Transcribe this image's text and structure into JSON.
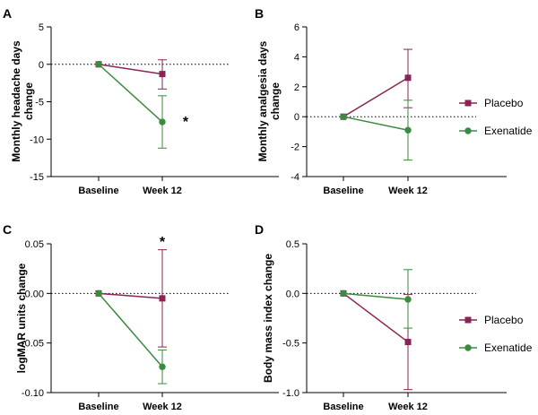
{
  "colors": {
    "placebo": "#8c2356",
    "exenatide": "#3a8a3f"
  },
  "legend": {
    "placebo": "Placebo",
    "exenatide": "Exenatide"
  },
  "chart_data": [
    {
      "type": "line",
      "panel": "A",
      "ylabel": [
        "Monthly headache days",
        "change"
      ],
      "categories": [
        "Baseline",
        "Week 12"
      ],
      "ylim": [
        -15,
        5
      ],
      "yticks": [
        "5",
        "0",
        "-5",
        "-10",
        "-15"
      ],
      "ytick_values": [
        5,
        0,
        -5,
        -10,
        -15
      ],
      "reference_line": 0,
      "series": [
        {
          "name": "Placebo",
          "values": [
            0,
            -1.3
          ],
          "err_low": [
            0,
            -3.3
          ],
          "err_high": [
            0,
            0.6
          ]
        },
        {
          "name": "Exenatide",
          "values": [
            0,
            -7.7
          ],
          "err_low": [
            0,
            -11.2
          ],
          "err_high": [
            0,
            -4.2
          ]
        }
      ],
      "annotation": "*"
    },
    {
      "type": "line",
      "panel": "B",
      "ylabel": [
        "Monthly analgesia days",
        "change"
      ],
      "categories": [
        "Baseline",
        "Week 12"
      ],
      "ylim": [
        -4,
        6
      ],
      "yticks": [
        "6",
        "4",
        "2",
        "0",
        "-2",
        "-4"
      ],
      "ytick_values": [
        6,
        4,
        2,
        0,
        -2,
        -4
      ],
      "reference_line": 0,
      "series": [
        {
          "name": "Placebo",
          "values": [
            0,
            2.6
          ],
          "err_low": [
            0,
            0.6
          ],
          "err_high": [
            0,
            4.5
          ]
        },
        {
          "name": "Exenatide",
          "values": [
            0,
            -0.9
          ],
          "err_low": [
            0,
            -2.9
          ],
          "err_high": [
            0,
            1.1
          ]
        }
      ],
      "annotation": ""
    },
    {
      "type": "line",
      "panel": "C",
      "ylabel": [
        "logMAR units change"
      ],
      "categories": [
        "Baseline",
        "Week 12"
      ],
      "ylim": [
        -0.1,
        0.05
      ],
      "yticks": [
        "0.05",
        "0.00",
        "-0.05",
        "-0.10"
      ],
      "ytick_values": [
        0.05,
        0,
        -0.05,
        -0.1
      ],
      "reference_line": 0,
      "series": [
        {
          "name": "Placebo",
          "values": [
            0,
            -0.005
          ],
          "err_low": [
            0,
            -0.054
          ],
          "err_high": [
            0,
            0.044
          ]
        },
        {
          "name": "Exenatide",
          "values": [
            0,
            -0.074
          ],
          "err_low": [
            0,
            -0.091
          ],
          "err_high": [
            0,
            -0.057
          ]
        }
      ],
      "annotation": "*"
    },
    {
      "type": "line",
      "panel": "D",
      "ylabel": [
        "Body mass index change"
      ],
      "categories": [
        "Baseline",
        "Week 12"
      ],
      "ylim": [
        -1.0,
        0.5
      ],
      "yticks": [
        "0.5",
        "0.0",
        "-0.5",
        "-1.0"
      ],
      "ytick_values": [
        0.5,
        0,
        -0.5,
        -1.0
      ],
      "reference_line": 0,
      "series": [
        {
          "name": "Placebo",
          "values": [
            0,
            -0.49
          ],
          "err_low": [
            0,
            -0.97
          ],
          "err_high": [
            0,
            -0.01
          ]
        },
        {
          "name": "Exenatide",
          "values": [
            0,
            -0.06
          ],
          "err_low": [
            0,
            -0.35
          ],
          "err_high": [
            0,
            0.24
          ]
        }
      ],
      "annotation": ""
    }
  ]
}
